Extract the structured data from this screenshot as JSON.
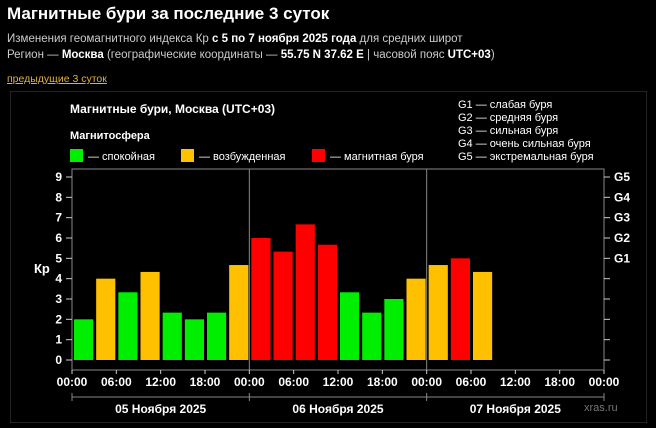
{
  "page": {
    "title": "Магнитные бури за последние 3 суток",
    "line1": {
      "prefix": "Изменения геомагнитного индекса Кр ",
      "bold": "с 5 по 7 ноября 2025 года",
      "suffix": " для средних широт"
    },
    "line2": {
      "label": "Регион — ",
      "region": "Москва",
      "coords_label": " (географические координаты — ",
      "coords": "55.75 N 37.62 E",
      "tz_label": " | часовой пояс ",
      "tz": "UTC+03",
      "close": ")"
    },
    "prev_link": "предыдущие 3 суток"
  },
  "chart_data": {
    "type": "bar",
    "title": "Магнитные бури, Москва (UTC+03)",
    "legend_title": "Магнитосфера",
    "legend": [
      {
        "label": "— спокойная",
        "color": "#00ee00"
      },
      {
        "label": "— возбужденная",
        "color": "#ffc000"
      },
      {
        "label": "— магнитная буря",
        "color": "#ff0000"
      }
    ],
    "storm_scale": [
      "G1 — слабая буря",
      "G2 — средняя буря",
      "G3 — сильная буря",
      "G4 — очень сильная буря",
      "G5 — экстремальная буря"
    ],
    "ylabel": "Кр",
    "ylim": [
      0,
      9
    ],
    "yticks": [
      0,
      1,
      2,
      3,
      4,
      5,
      6,
      7,
      8,
      9
    ],
    "right_ticks": [
      {
        "label": "G1",
        "value": 5
      },
      {
        "label": "G2",
        "value": 6
      },
      {
        "label": "G3",
        "value": 7
      },
      {
        "label": "G4",
        "value": 8
      },
      {
        "label": "G5",
        "value": 9
      }
    ],
    "xtick_labels": [
      "00:00",
      "06:00",
      "12:00",
      "18:00",
      "00:00",
      "06:00",
      "12:00",
      "18:00",
      "00:00",
      "06:00",
      "12:00",
      "18:00",
      "00:00"
    ],
    "days": [
      "05 Ноября 2025",
      "06 Ноября 2025",
      "07 Ноября 2025"
    ],
    "slots": 24,
    "values": [
      2.0,
      4.0,
      3.33,
      4.33,
      2.33,
      2.0,
      2.33,
      4.67,
      6.0,
      5.33,
      6.67,
      5.67,
      3.33,
      2.33,
      3.0,
      4.0,
      4.67,
      5.0,
      4.33
    ],
    "colors": {
      "quiet": "#00ee00",
      "active": "#ffc000",
      "storm": "#ff0000"
    },
    "watermark": "xras.ru"
  }
}
